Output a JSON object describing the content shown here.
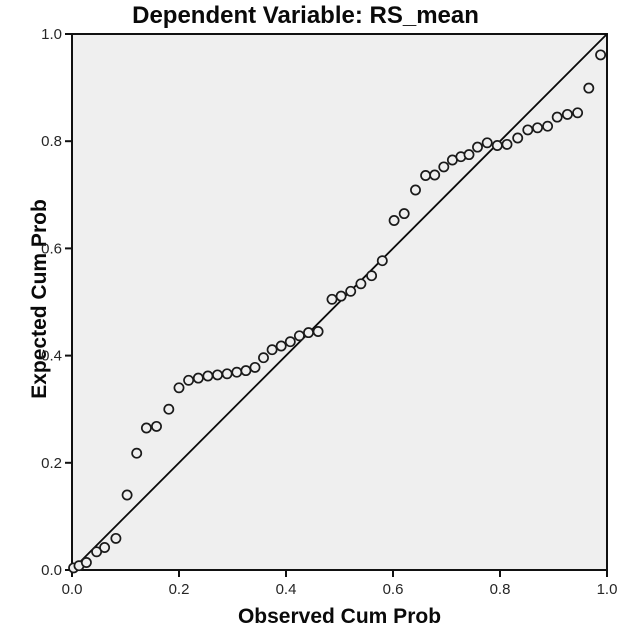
{
  "chart_data": {
    "type": "scatter",
    "title": "Dependent Variable: RS_mean",
    "xlabel": "Observed Cum Prob",
    "ylabel": "Expected Cum Prob",
    "xlim": [
      0.0,
      1.0
    ],
    "ylim": [
      0.0,
      1.0
    ],
    "x_ticks": [
      "0.0",
      "0.2",
      "0.4",
      "0.6",
      "0.8",
      "1.0"
    ],
    "y_ticks": [
      "0.0",
      "0.2",
      "0.4",
      "0.6",
      "0.8",
      "1.0"
    ],
    "grid": false,
    "legend": "none",
    "marker": "open-circle",
    "reference_line": {
      "from": [
        0.0,
        0.0
      ],
      "to": [
        1.0,
        1.0
      ]
    },
    "colors": {
      "plot_bg": "#efefef",
      "axis": "#111111",
      "marker_stroke": "#1a1a1a",
      "reference_line": "#0a0a0a",
      "tick_text": "#262626"
    },
    "points": [
      [
        0.003,
        0.004
      ],
      [
        0.013,
        0.008
      ],
      [
        0.027,
        0.014
      ],
      [
        0.046,
        0.034
      ],
      [
        0.061,
        0.042
      ],
      [
        0.082,
        0.059
      ],
      [
        0.103,
        0.14
      ],
      [
        0.121,
        0.218
      ],
      [
        0.139,
        0.265
      ],
      [
        0.158,
        0.268
      ],
      [
        0.181,
        0.3
      ],
      [
        0.2,
        0.34
      ],
      [
        0.218,
        0.354
      ],
      [
        0.236,
        0.358
      ],
      [
        0.254,
        0.362
      ],
      [
        0.272,
        0.364
      ],
      [
        0.29,
        0.366
      ],
      [
        0.308,
        0.369
      ],
      [
        0.325,
        0.372
      ],
      [
        0.342,
        0.378
      ],
      [
        0.358,
        0.396
      ],
      [
        0.374,
        0.411
      ],
      [
        0.391,
        0.418
      ],
      [
        0.408,
        0.426
      ],
      [
        0.425,
        0.437
      ],
      [
        0.442,
        0.443
      ],
      [
        0.46,
        0.445
      ],
      [
        0.486,
        0.505
      ],
      [
        0.503,
        0.511
      ],
      [
        0.521,
        0.52
      ],
      [
        0.54,
        0.534
      ],
      [
        0.56,
        0.549
      ],
      [
        0.58,
        0.577
      ],
      [
        0.602,
        0.652
      ],
      [
        0.621,
        0.665
      ],
      [
        0.642,
        0.709
      ],
      [
        0.661,
        0.736
      ],
      [
        0.678,
        0.737
      ],
      [
        0.695,
        0.752
      ],
      [
        0.711,
        0.765
      ],
      [
        0.727,
        0.771
      ],
      [
        0.742,
        0.775
      ],
      [
        0.758,
        0.789
      ],
      [
        0.776,
        0.797
      ],
      [
        0.795,
        0.792
      ],
      [
        0.813,
        0.794
      ],
      [
        0.833,
        0.806
      ],
      [
        0.852,
        0.821
      ],
      [
        0.87,
        0.825
      ],
      [
        0.889,
        0.828
      ],
      [
        0.907,
        0.845
      ],
      [
        0.926,
        0.85
      ],
      [
        0.945,
        0.853
      ],
      [
        0.966,
        0.899
      ],
      [
        0.988,
        0.961
      ]
    ]
  }
}
